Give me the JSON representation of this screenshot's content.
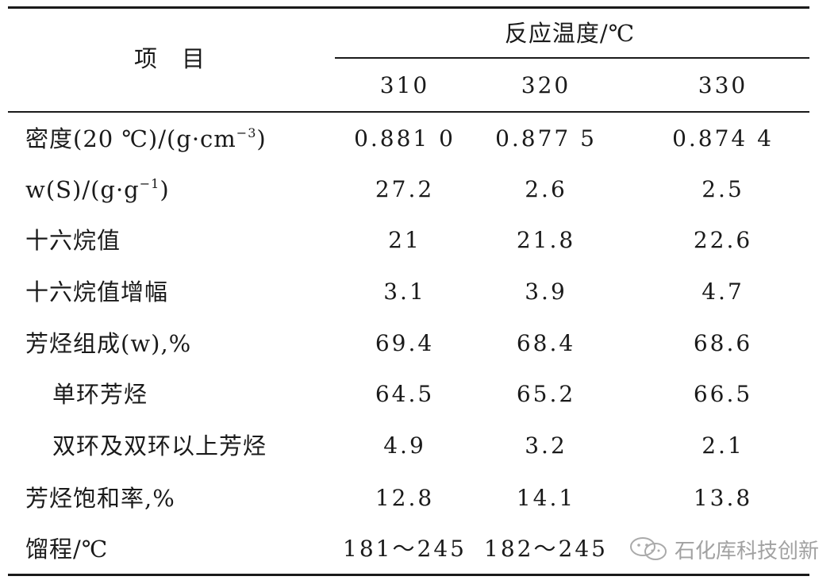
{
  "table": {
    "header": {
      "item_label": "项　目",
      "group_label": "反应温度/℃",
      "columns": [
        "310",
        "320",
        "330"
      ]
    },
    "rows": [
      {
        "label": "密度(20 ℃)/(g·cm",
        "sup": "−3",
        "label_tail": ")",
        "indent": false,
        "values": [
          "0.881 0",
          "0.877 5",
          "0.874 4"
        ]
      },
      {
        "label": "w(S)/(g·g",
        "sup": "−1",
        "label_tail": ")",
        "indent": false,
        "values": [
          "27.2",
          "2.6",
          "2.5"
        ]
      },
      {
        "label": "十六烷值",
        "sup": "",
        "label_tail": "",
        "indent": false,
        "values": [
          "21",
          "21.8",
          "22.6"
        ]
      },
      {
        "label": "十六烷值增幅",
        "sup": "",
        "label_tail": "",
        "indent": false,
        "values": [
          "3.1",
          "3.9",
          "4.7"
        ]
      },
      {
        "label": "芳烃组成(w),%",
        "sup": "",
        "label_tail": "",
        "indent": false,
        "values": [
          "69.4",
          "68.4",
          "68.6"
        ]
      },
      {
        "label": "单环芳烃",
        "sup": "",
        "label_tail": "",
        "indent": true,
        "values": [
          "64.5",
          "65.2",
          "66.5"
        ]
      },
      {
        "label": "双环及双环以上芳烃",
        "sup": "",
        "label_tail": "",
        "indent": true,
        "values": [
          "4.9",
          "3.2",
          "2.1"
        ]
      },
      {
        "label": "芳烃饱和率,%",
        "sup": "",
        "label_tail": "",
        "indent": false,
        "values": [
          "12.8",
          "14.1",
          "13.8"
        ]
      },
      {
        "label": "馏程/℃",
        "sup": "",
        "label_tail": "",
        "indent": false,
        "values": [
          "181～245",
          "182～245",
          ""
        ]
      }
    ]
  },
  "watermark": {
    "text": "石化库科技创新",
    "icon": "wechat-logo-icon"
  }
}
